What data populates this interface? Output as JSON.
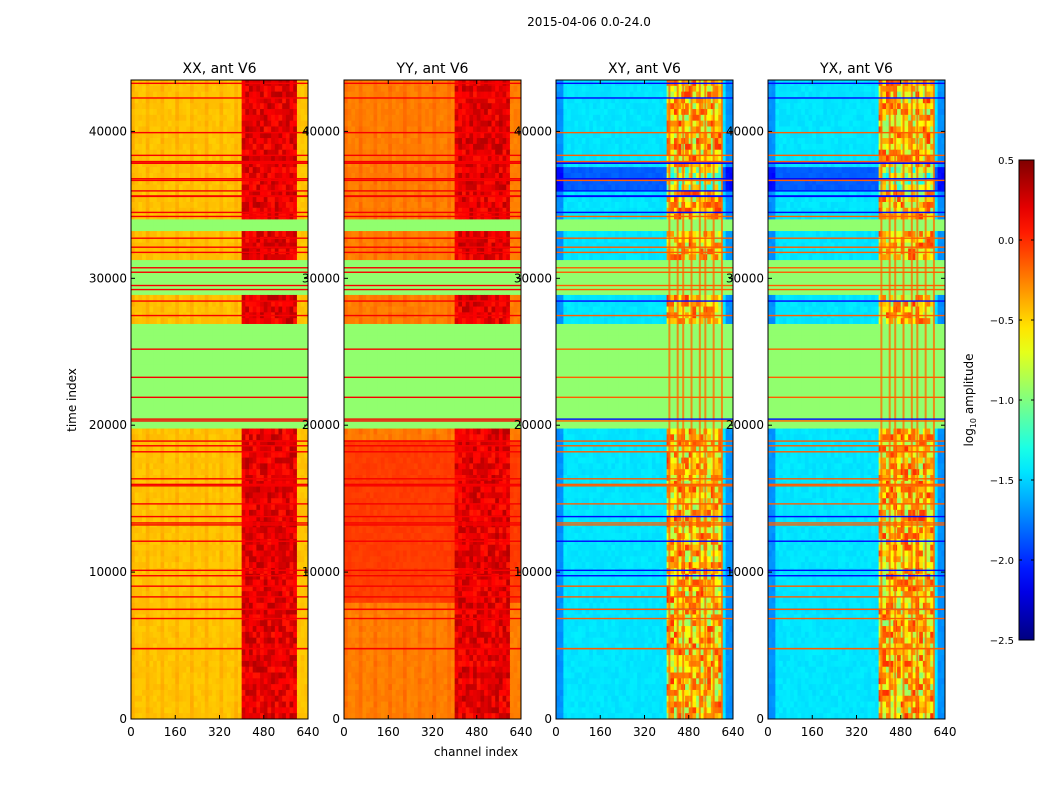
{
  "chart_data": {
    "type": "heatmap",
    "suptitle": "2015-04-06 0.0-24.0",
    "xlabel": "channel index",
    "ylabel": "time index",
    "xlim": [
      0,
      640
    ],
    "ylim": [
      0,
      43500
    ],
    "xticks": [
      0,
      160,
      320,
      480,
      640
    ],
    "yticks": [
      0,
      10000,
      20000,
      30000,
      40000
    ],
    "panels": [
      {
        "title": "XX, ant V6",
        "kind": "auto",
        "base": -0.45
      },
      {
        "title": "YY, ant V6",
        "kind": "auto",
        "base": -0.25,
        "elevated_block": {
          "t_start": 8000,
          "t_end": 18800,
          "level": -0.05
        }
      },
      {
        "title": "XY, ant V6",
        "kind": "cross",
        "base": -1.45
      },
      {
        "title": "YX, ant V6",
        "kind": "cross",
        "base": -1.45
      }
    ],
    "flagged_bands": [
      [
        28700,
        31300
      ],
      [
        19700,
        25500
      ],
      [
        33200,
        34000
      ],
      [
        25500,
        27000
      ]
    ],
    "rfi_channels": [
      410,
      440,
      460,
      490,
      520,
      540,
      570,
      600
    ],
    "colorbar": {
      "label": "log10 amplitude",
      "label_main": "log",
      "label_sub": "10",
      "label_rest": " amplitude",
      "min": -2.5,
      "max": 0.5,
      "ticks": [
        "0.5",
        "0.0",
        "−0.5",
        "−1.0",
        "−1.5",
        "−2.0",
        "−2.5"
      ],
      "tick_values": [
        0.5,
        0.0,
        -0.5,
        -1.0,
        -1.5,
        -2.0,
        -2.5
      ]
    }
  }
}
